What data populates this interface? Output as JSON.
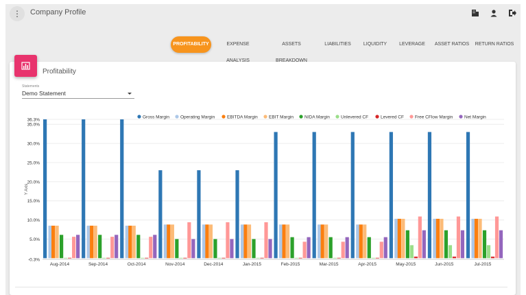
{
  "header": {
    "title": "Company Profile"
  },
  "tabs": [
    {
      "label": "PROFITABILITY",
      "active": true
    },
    {
      "label": "EXPENSE ANALYSIS",
      "active": false
    },
    {
      "label": "ASSETS BREAKDOWN",
      "active": false
    },
    {
      "label": "LIABILITIES",
      "active": false
    },
    {
      "label": "LIQUIDITY",
      "active": false
    },
    {
      "label": "LEVERAGE",
      "active": false
    },
    {
      "label": "ASSET RATIOS",
      "active": false
    },
    {
      "label": "RETURN RATIOS",
      "active": false
    }
  ],
  "card": {
    "title": "Profitability",
    "statements_label": "Statements",
    "statement_value": "Demo Statement"
  },
  "colors": {
    "accent": "#f7941d",
    "card_icon": "#e8336d"
  },
  "chart_data": {
    "type": "bar",
    "ylabel": "Y Axis",
    "ylim": [
      -0.3,
      36.3
    ],
    "yticks": [
      "36.3%",
      "35.0%",
      "30.0%",
      "25.0%",
      "20.0%",
      "15.0%",
      "10.0%",
      "5.0%",
      "-0.3%"
    ],
    "ytick_values": [
      36.3,
      35,
      30,
      25,
      20,
      15,
      10,
      5,
      -0.3
    ],
    "categories": [
      "Aug-2014",
      "Sep-2014",
      "Oct-2014",
      "Nov-2014",
      "Dec-2014",
      "Jan-2015",
      "Feb-2015",
      "Mar-2015",
      "Apr-2015",
      "May-2015",
      "Jun-2015",
      "Jul-2015"
    ],
    "series": [
      {
        "name": "Gross Margin",
        "color": "#2e77b4",
        "values": [
          36.3,
          36.3,
          36.3,
          23.0,
          23.0,
          23.0,
          33.0,
          33.0,
          33.0,
          33.0,
          33.0,
          33.0
        ]
      },
      {
        "name": "Operating Margin",
        "color": "#adc8e8",
        "values": [
          8.5,
          8.5,
          8.5,
          8.8,
          8.8,
          8.8,
          8.8,
          8.8,
          8.8,
          10.3,
          10.3,
          10.3
        ]
      },
      {
        "name": "EBITDA Margin",
        "color": "#fb7f0f",
        "values": [
          8.5,
          8.5,
          8.5,
          8.8,
          8.8,
          8.8,
          8.8,
          8.8,
          8.8,
          10.3,
          10.3,
          10.3
        ]
      },
      {
        "name": "EBIT Margin",
        "color": "#fcbb78",
        "values": [
          8.5,
          8.5,
          8.5,
          8.8,
          8.8,
          8.8,
          8.8,
          8.8,
          8.8,
          10.3,
          10.3,
          10.3
        ]
      },
      {
        "name": "NIDA Margin",
        "color": "#2ca12b",
        "values": [
          6.1,
          6.1,
          6.1,
          5.0,
          5.0,
          5.0,
          5.5,
          5.5,
          5.5,
          7.3,
          7.3,
          7.3
        ]
      },
      {
        "name": "Unlevered CF",
        "color": "#9ade89",
        "values": [
          0.1,
          0.1,
          0.1,
          0.1,
          0.1,
          0.1,
          0.1,
          0.1,
          0.1,
          3.4,
          3.4,
          3.4
        ]
      },
      {
        "name": "Levered CF",
        "color": "#d62627",
        "values": [
          0.1,
          0.1,
          0.1,
          0.1,
          0.1,
          0.1,
          0.1,
          0.1,
          0.1,
          0.4,
          0.4,
          0.4
        ]
      },
      {
        "name": "Free CFlow Margin",
        "color": "#ff9897",
        "values": [
          5.6,
          5.6,
          5.6,
          9.4,
          9.4,
          9.4,
          4.3,
          4.3,
          4.3,
          10.9,
          10.9,
          10.9
        ]
      },
      {
        "name": "Net Margin",
        "color": "#9466bd",
        "values": [
          6.1,
          6.1,
          6.1,
          5.0,
          5.0,
          5.0,
          5.5,
          5.5,
          5.5,
          7.3,
          7.3,
          7.3
        ]
      }
    ]
  }
}
